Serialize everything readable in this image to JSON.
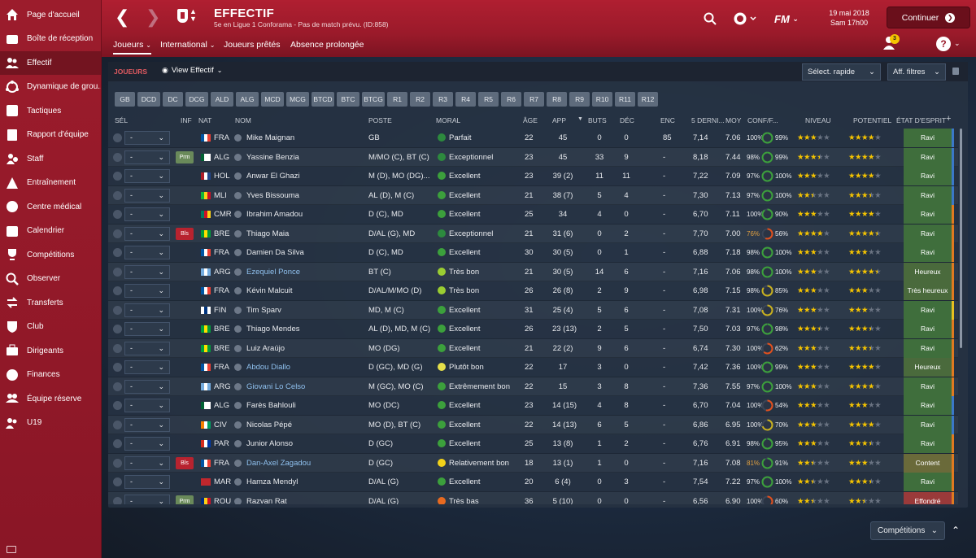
{
  "sidebar": {
    "items": [
      {
        "label": "Page d'accueil",
        "icon": "home-icon"
      },
      {
        "label": "Boîte de réception",
        "icon": "inbox-icon"
      },
      {
        "label": "Effectif",
        "icon": "squad-icon",
        "active": true
      },
      {
        "label": "Dynamique de grou...",
        "icon": "dynamics-icon"
      },
      {
        "label": "Tactiques",
        "icon": "tactics-icon"
      },
      {
        "label": "Rapport d'équipe",
        "icon": "report-icon"
      },
      {
        "label": "Staff",
        "icon": "staff-icon"
      },
      {
        "label": "Entraînement",
        "icon": "training-icon"
      },
      {
        "label": "Centre médical",
        "icon": "medical-icon"
      },
      {
        "label": "Calendrier",
        "icon": "calendar-icon"
      },
      {
        "label": "Compétitions",
        "icon": "trophy-icon"
      },
      {
        "label": "Observer",
        "icon": "scout-icon"
      },
      {
        "label": "Transferts",
        "icon": "transfers-icon"
      },
      {
        "label": "Club",
        "icon": "club-icon"
      },
      {
        "label": "Dirigeants",
        "icon": "board-icon"
      },
      {
        "label": "Finances",
        "icon": "finances-icon"
      },
      {
        "label": "Équipe réserve",
        "icon": "reserve-icon"
      },
      {
        "label": "U19",
        "icon": "u19-icon"
      }
    ]
  },
  "header": {
    "title": "EFFECTIF",
    "subtitle": "5e en Ligue 1 Conforama - Pas de match prévu. (ID:858)",
    "tabs": [
      "Joueurs",
      "International",
      "Joueurs prêtés",
      "Absence prolongée"
    ],
    "date_line1": "19 mai 2018",
    "date_line2": "Sam 17h00",
    "continue_label": "Continuer",
    "notif_count": "3",
    "fm_label": "FM",
    "help_label": "?"
  },
  "panel": {
    "section_label": "JOUEURS",
    "view_label": "View Effectif",
    "rapid_select": "Sélect. rapide",
    "filters": "Aff. filtres",
    "position_filters": [
      "GB",
      "DCD",
      "DC",
      "DCG",
      "ALD",
      "ALG",
      "MCD",
      "MCG",
      "BTCD",
      "BTC",
      "BTCG",
      "R1",
      "R2",
      "R3",
      "R4",
      "R5",
      "R6",
      "R7",
      "R8",
      "R9",
      "R10",
      "R11",
      "R12"
    ]
  },
  "columns": {
    "sel": "SÉL",
    "inf": "INF",
    "nat": "NAT",
    "nom": "NOM",
    "poste": "POSTE",
    "moral": "MORAL",
    "age": "ÂGE",
    "app": "APP",
    "buts": "BUTS",
    "dec": "DÉC",
    "enc": "ENC",
    "dernier": "5 DERNI...",
    "moy": "MOY",
    "conf": "CONF/F...",
    "niveau": "NIVEAU",
    "potentiel": "POTENTIEL",
    "etat": "ÉTAT D'ESPRIT"
  },
  "colors": {
    "moral_excellent": "#3ca03c",
    "moral_parfait": "#2d8a3e",
    "moral_tresbon": "#9acd32",
    "moral_plutotbon": "#e6e04a",
    "moral_relat": "#f2d21a",
    "moral_tresbas": "#e86a20",
    "star": "#f5c400",
    "etat_ravi": "#3f6e3c",
    "etat_heureux": "#4a6a3c",
    "etat_content": "#6a6a3a",
    "etat_effondre": "#9a3a3a"
  },
  "players": [
    {
      "sel": "-",
      "inf": "",
      "nat": "FRA",
      "flag": [
        "#0055a4",
        "#fff",
        "#ef4135"
      ],
      "name": "Mike Maignan",
      "linked": false,
      "poste": "GB",
      "moral": "Parfait",
      "mcol": "#2d8a3e",
      "age": "22",
      "app": "45",
      "buts": "0",
      "dec": "0",
      "enc": "85",
      "last5": "7,14",
      "moy": "7.06",
      "conf": "100%",
      "cond": "99%",
      "niv": 3,
      "pot": 4,
      "etat": "Ravi",
      "ecol": "#3f6e3c",
      "strip": "#3a78c8"
    },
    {
      "sel": "-",
      "inf": "Prm",
      "nat": "ALG",
      "flag": [
        "#006233",
        "#fff",
        "#fff"
      ],
      "name": "Yassine Benzia",
      "linked": false,
      "poste": "M/MO (C), BT (C)",
      "moral": "Exceptionnel",
      "mcol": "#2d8a3e",
      "age": "23",
      "app": "45",
      "buts": "33",
      "dec": "9",
      "enc": "-",
      "last5": "8,18",
      "moy": "7.44",
      "conf": "98%",
      "cond": "99%",
      "niv": 3.5,
      "pot": 4,
      "etat": "Ravi",
      "ecol": "#3f6e3c",
      "strip": "#3a78c8"
    },
    {
      "sel": "-",
      "inf": "",
      "nat": "HOL",
      "flag": [
        "#ae1c28",
        "#fff",
        "#21468b"
      ],
      "name": "Anwar El Ghazi",
      "linked": false,
      "poste": "M (D), MO (DG)...",
      "moral": "Excellent",
      "mcol": "#3ca03c",
      "age": "23",
      "app": "39 (2)",
      "buts": "11",
      "dec": "11",
      "enc": "-",
      "last5": "7,22",
      "moy": "7.09",
      "conf": "97%",
      "cond": "100%",
      "niv": 3,
      "pot": 4,
      "etat": "Ravi",
      "ecol": "#3f6e3c",
      "strip": "#3a78c8"
    },
    {
      "sel": "-",
      "inf": "",
      "nat": "MLI",
      "flag": [
        "#14b53a",
        "#fcd116",
        "#ce1126"
      ],
      "name": "Yves Bissouma",
      "linked": false,
      "poste": "AL (D), M (C)",
      "moral": "Excellent",
      "mcol": "#3ca03c",
      "age": "21",
      "app": "38 (7)",
      "buts": "5",
      "dec": "4",
      "enc": "-",
      "last5": "7,30",
      "moy": "7.13",
      "conf": "97%",
      "cond": "100%",
      "niv": 2.5,
      "pot": 3.5,
      "etat": "Ravi",
      "ecol": "#3f6e3c",
      "strip": "#3a78c8"
    },
    {
      "sel": "-",
      "inf": "",
      "nat": "CMR",
      "flag": [
        "#007a5e",
        "#ce1126",
        "#fcd116"
      ],
      "name": "Ibrahim Amadou",
      "linked": false,
      "poste": "D (C), MD",
      "moral": "Excellent",
      "mcol": "#3ca03c",
      "age": "25",
      "app": "34",
      "buts": "4",
      "dec": "0",
      "enc": "-",
      "last5": "6,70",
      "moy": "7.11",
      "conf": "100%",
      "cond": "90%",
      "niv": 3,
      "pot": 4,
      "etat": "Ravi",
      "ecol": "#3f6e3c",
      "strip": "#e07a20"
    },
    {
      "sel": "-",
      "inf": "Bls",
      "nat": "BRE",
      "flag": [
        "#009c3b",
        "#ffdf00",
        "#009c3b"
      ],
      "name": "Thiago Maia",
      "linked": false,
      "poste": "D/AL (G), MD",
      "moral": "Exceptionnel",
      "mcol": "#2d8a3e",
      "age": "21",
      "app": "31 (6)",
      "buts": "0",
      "dec": "2",
      "enc": "-",
      "last5": "7,70",
      "moy": "7.00",
      "conf": "76%",
      "cond": "56%",
      "niv": 4,
      "pot": 4.5,
      "etat": "Ravi",
      "ecol": "#3f6e3c",
      "strip": "#e07a20"
    },
    {
      "sel": "-",
      "inf": "",
      "nat": "FRA",
      "flag": [
        "#0055a4",
        "#fff",
        "#ef4135"
      ],
      "name": "Damien Da Silva",
      "linked": false,
      "poste": "D (C), MD",
      "moral": "Excellent",
      "mcol": "#3ca03c",
      "age": "30",
      "app": "30 (5)",
      "buts": "0",
      "dec": "1",
      "enc": "-",
      "last5": "6,88",
      "moy": "7.18",
      "conf": "98%",
      "cond": "100%",
      "niv": 3,
      "pot": 3,
      "etat": "Ravi",
      "ecol": "#3f6e3c",
      "strip": "#e07a20"
    },
    {
      "sel": "-",
      "inf": "",
      "nat": "ARG",
      "flag": [
        "#74acdf",
        "#fff",
        "#74acdf"
      ],
      "name": "Ezequiel Ponce",
      "linked": true,
      "poste": "BT (C)",
      "moral": "Très bon",
      "mcol": "#9acd32",
      "age": "21",
      "app": "30 (5)",
      "buts": "14",
      "dec": "6",
      "enc": "-",
      "last5": "7,16",
      "moy": "7.06",
      "conf": "98%",
      "cond": "100%",
      "niv": 3,
      "pot": 4.5,
      "etat": "Heureux",
      "ecol": "#4a6a3c",
      "strip": "#e07a20"
    },
    {
      "sel": "-",
      "inf": "",
      "nat": "FRA",
      "flag": [
        "#0055a4",
        "#fff",
        "#ef4135"
      ],
      "name": "Kévin Malcuit",
      "linked": false,
      "poste": "D/AL/M/MO (D)",
      "moral": "Très bon",
      "mcol": "#9acd32",
      "age": "26",
      "app": "26 (8)",
      "buts": "2",
      "dec": "9",
      "enc": "-",
      "last5": "6,98",
      "moy": "7.15",
      "conf": "98%",
      "cond": "85%",
      "niv": 3,
      "pot": 3,
      "etat": "Très heureux",
      "ecol": "#4a6a3c",
      "strip": "#e07a20"
    },
    {
      "sel": "-",
      "inf": "",
      "nat": "FIN",
      "flag": [
        "#fff",
        "#003580",
        "#fff"
      ],
      "name": "Tim Sparv",
      "linked": false,
      "poste": "MD, M (C)",
      "moral": "Excellent",
      "mcol": "#3ca03c",
      "age": "31",
      "app": "25 (4)",
      "buts": "5",
      "dec": "6",
      "enc": "-",
      "last5": "7,08",
      "moy": "7.31",
      "conf": "100%",
      "cond": "76%",
      "niv": 3,
      "pot": 3,
      "etat": "Ravi",
      "ecol": "#3f6e3c",
      "strip": "#e8c020"
    },
    {
      "sel": "-",
      "inf": "",
      "nat": "BRE",
      "flag": [
        "#009c3b",
        "#ffdf00",
        "#009c3b"
      ],
      "name": "Thiago Mendes",
      "linked": false,
      "poste": "AL (D), MD, M (C)",
      "moral": "Excellent",
      "mcol": "#3ca03c",
      "age": "26",
      "app": "23 (13)",
      "buts": "2",
      "dec": "5",
      "enc": "-",
      "last5": "7,50",
      "moy": "7.03",
      "conf": "97%",
      "cond": "98%",
      "niv": 3.5,
      "pot": 3.5,
      "etat": "Ravi",
      "ecol": "#3f6e3c",
      "strip": "#e07a20"
    },
    {
      "sel": "-",
      "inf": "",
      "nat": "BRE",
      "flag": [
        "#009c3b",
        "#ffdf00",
        "#009c3b"
      ],
      "name": "Luiz Araújo",
      "linked": false,
      "poste": "MO (DG)",
      "moral": "Excellent",
      "mcol": "#3ca03c",
      "age": "21",
      "app": "22 (2)",
      "buts": "9",
      "dec": "6",
      "enc": "-",
      "last5": "6,74",
      "moy": "7.30",
      "conf": "100%",
      "cond": "62%",
      "niv": 3,
      "pot": 3.5,
      "etat": "Ravi",
      "ecol": "#3f6e3c",
      "strip": "#e07a20"
    },
    {
      "sel": "-",
      "inf": "",
      "nat": "FRA",
      "flag": [
        "#0055a4",
        "#fff",
        "#ef4135"
      ],
      "name": "Abdou Diallo",
      "linked": true,
      "poste": "D (GC), MD (G)",
      "moral": "Plutôt bon",
      "mcol": "#e6e04a",
      "age": "22",
      "app": "17",
      "buts": "3",
      "dec": "0",
      "enc": "-",
      "last5": "7,42",
      "moy": "7.36",
      "conf": "100%",
      "cond": "99%",
      "niv": 3,
      "pot": 4,
      "etat": "Heureux",
      "ecol": "#4a6a3c",
      "strip": "#e07a20"
    },
    {
      "sel": "-",
      "inf": "",
      "nat": "ARG",
      "flag": [
        "#74acdf",
        "#fff",
        "#74acdf"
      ],
      "name": "Giovani Lo Celso",
      "linked": true,
      "poste": "M (GC), MO (C)",
      "moral": "Extrêmement bon",
      "mcol": "#3ca03c",
      "age": "22",
      "app": "15",
      "buts": "3",
      "dec": "8",
      "enc": "-",
      "last5": "7,36",
      "moy": "7.55",
      "conf": "97%",
      "cond": "100%",
      "niv": 3,
      "pot": 4,
      "etat": "Ravi",
      "ecol": "#3f6e3c",
      "strip": "#e07a20"
    },
    {
      "sel": "-",
      "inf": "",
      "nat": "ALG",
      "flag": [
        "#006233",
        "#fff",
        "#fff"
      ],
      "name": "Farès Bahlouli",
      "linked": false,
      "poste": "MO (DC)",
      "moral": "Excellent",
      "mcol": "#3ca03c",
      "age": "23",
      "app": "14 (15)",
      "buts": "4",
      "dec": "8",
      "enc": "-",
      "last5": "6,70",
      "moy": "7.04",
      "conf": "100%",
      "cond": "54%",
      "niv": 3,
      "pot": 3,
      "etat": "Ravi",
      "ecol": "#3f6e3c",
      "strip": "#3a78c8"
    },
    {
      "sel": "-",
      "inf": "",
      "nat": "CIV",
      "flag": [
        "#f77f00",
        "#fff",
        "#009e60"
      ],
      "name": "Nicolas Pépé",
      "linked": false,
      "poste": "MO (D), BT (C)",
      "moral": "Excellent",
      "mcol": "#3ca03c",
      "age": "22",
      "app": "14 (13)",
      "buts": "6",
      "dec": "5",
      "enc": "-",
      "last5": "6,86",
      "moy": "6.95",
      "conf": "100%",
      "cond": "70%",
      "niv": 3,
      "pot": 4,
      "etat": "Ravi",
      "ecol": "#3f6e3c",
      "strip": "#3a78c8"
    },
    {
      "sel": "-",
      "inf": "",
      "nat": "PAR",
      "flag": [
        "#d52b1e",
        "#fff",
        "#0038a8"
      ],
      "name": "Junior Alonso",
      "linked": false,
      "poste": "D (GC)",
      "moral": "Excellent",
      "mcol": "#3ca03c",
      "age": "25",
      "app": "13 (8)",
      "buts": "1",
      "dec": "2",
      "enc": "-",
      "last5": "6,76",
      "moy": "6.91",
      "conf": "98%",
      "cond": "95%",
      "niv": 3,
      "pot": 3.5,
      "etat": "Ravi",
      "ecol": "#3f6e3c",
      "strip": "#e07a20"
    },
    {
      "sel": "-",
      "inf": "Bls",
      "nat": "FRA",
      "flag": [
        "#0055a4",
        "#fff",
        "#ef4135"
      ],
      "name": "Dan-Axel Zagadou",
      "linked": true,
      "poste": "D (GC)",
      "moral": "Relativement bon",
      "mcol": "#f2d21a",
      "age": "18",
      "app": "13 (1)",
      "buts": "1",
      "dec": "0",
      "enc": "-",
      "last5": "7,16",
      "moy": "7.08",
      "conf": "81%",
      "cond": "91%",
      "niv": 2.5,
      "pot": 3,
      "etat": "Content",
      "ecol": "#6a6a3a",
      "strip": "#e07a20"
    },
    {
      "sel": "-",
      "inf": "",
      "nat": "MAR",
      "flag": [
        "#c1272d",
        "#c1272d",
        "#c1272d"
      ],
      "name": "Hamza Mendyl",
      "linked": false,
      "poste": "D/AL (G)",
      "moral": "Excellent",
      "mcol": "#3ca03c",
      "age": "20",
      "app": "6 (4)",
      "buts": "0",
      "dec": "3",
      "enc": "-",
      "last5": "7,54",
      "moy": "7.22",
      "conf": "97%",
      "cond": "100%",
      "niv": 2.5,
      "pot": 3.5,
      "etat": "Ravi",
      "ecol": "#3f6e3c",
      "strip": "#e07a20"
    },
    {
      "sel": "-",
      "inf": "Prm",
      "nat": "ROU",
      "flag": [
        "#002b7f",
        "#fcd116",
        "#ce1126"
      ],
      "name": "Razvan Rat",
      "linked": false,
      "poste": "D/AL (G)",
      "moral": "Très bas",
      "mcol": "#e86a20",
      "age": "36",
      "app": "5 (10)",
      "buts": "0",
      "dec": "0",
      "enc": "-",
      "last5": "6,56",
      "moy": "6.90",
      "conf": "100%",
      "cond": "60%",
      "niv": 2.5,
      "pot": 2.5,
      "etat": "Effondré",
      "ecol": "#9a3a3a",
      "strip": "#e07a20"
    }
  ],
  "footer": {
    "competitions": "Compétitions"
  }
}
